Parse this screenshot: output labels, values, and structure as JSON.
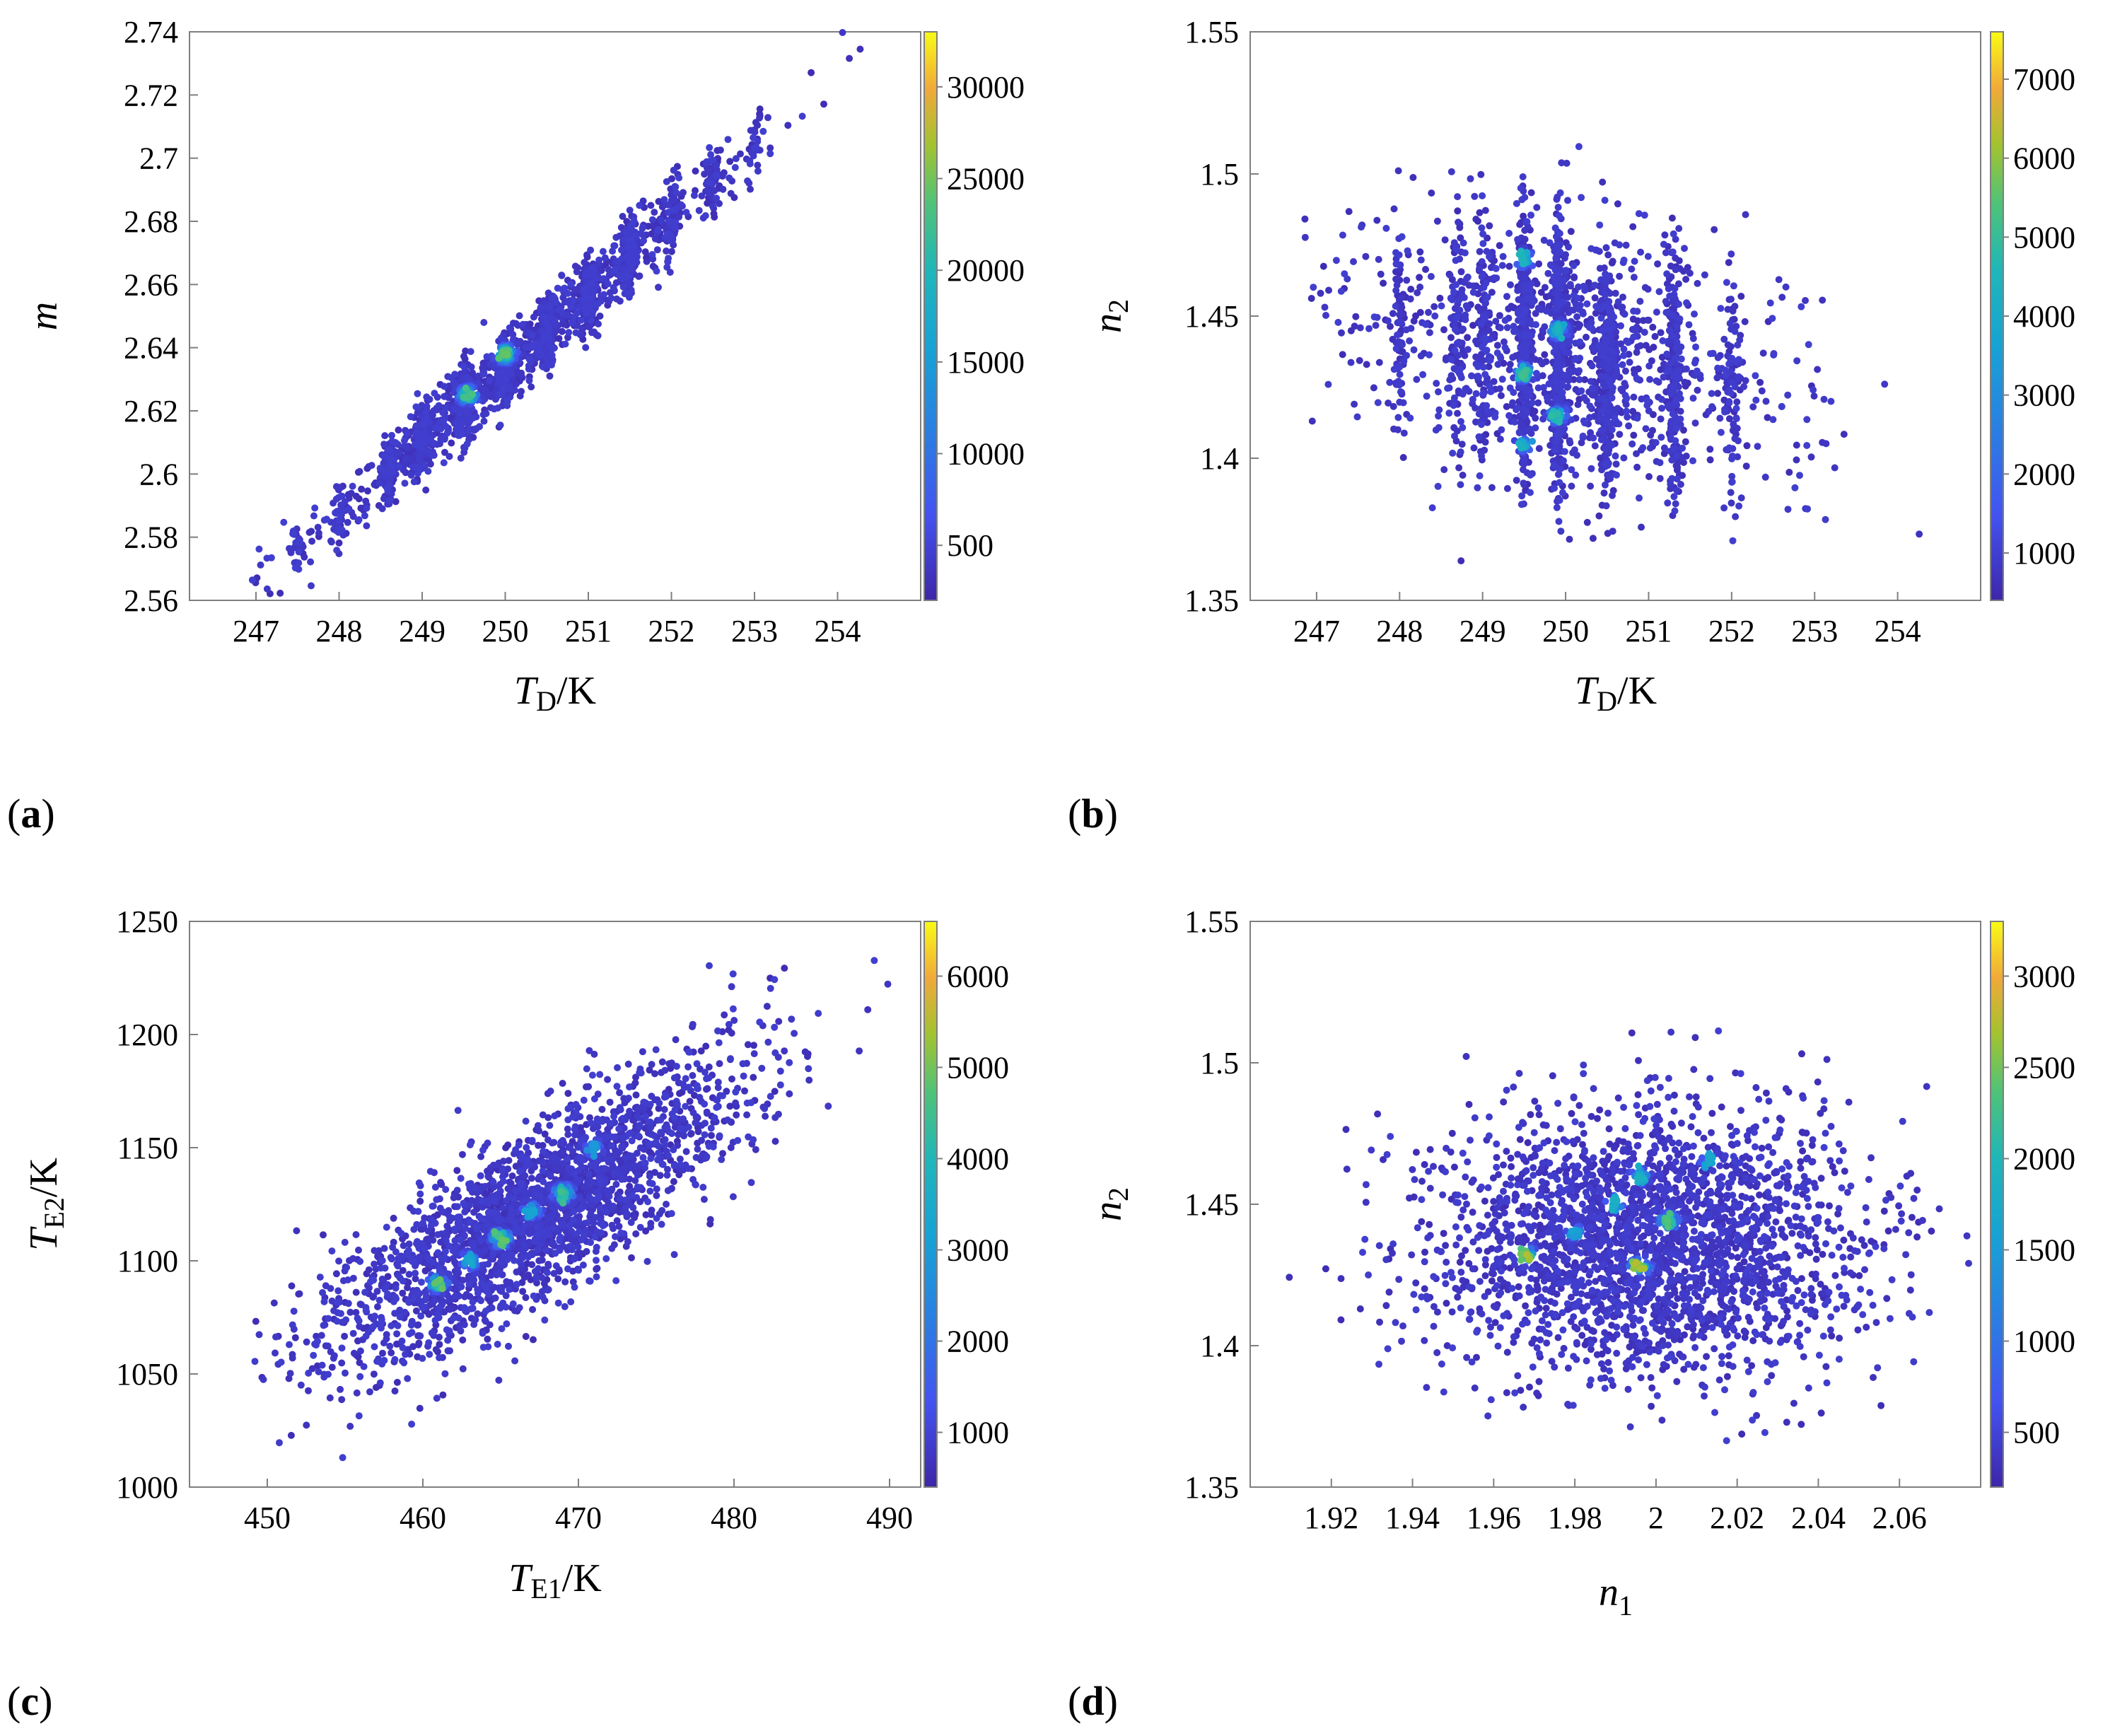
{
  "figure": {
    "panels": [
      {
        "id": "a",
        "label": "a",
        "colorbar": {
          "ticks": [
            "500",
            "10000",
            "15000",
            "20000",
            "25000",
            "30000"
          ]
        }
      },
      {
        "id": "b",
        "label": "b",
        "colorbar": {
          "ticks": [
            "1000",
            "2000",
            "3000",
            "4000",
            "5000",
            "6000",
            "7000"
          ]
        }
      },
      {
        "id": "c",
        "label": "c",
        "colorbar": {
          "ticks": [
            "1000",
            "2000",
            "3000",
            "4000",
            "5000",
            "6000"
          ]
        }
      },
      {
        "id": "d",
        "label": "d",
        "colorbar": {
          "ticks": [
            "500",
            "1000",
            "1500",
            "2000",
            "2500",
            "3000"
          ]
        }
      }
    ]
  },
  "colors": {
    "low": "#3e26a8",
    "mid_low": "#2a7fe2",
    "mid": "#1fb6b9",
    "mid_high": "#8fc53a",
    "high_orange": "#f1a93a",
    "max": "#f9fb15",
    "frame": "#7f7f7f"
  },
  "chart_data": [
    {
      "id": "a",
      "type": "scatter",
      "title": "",
      "xlabel_main": "T",
      "xlabel_sub": "D",
      "xlabel_unit": "/K",
      "ylabel_main": "m",
      "ylabel_sub": "",
      "x_ticks": [
        "247",
        "248",
        "249",
        "250",
        "251",
        "252",
        "253",
        "254"
      ],
      "y_ticks": [
        "2.56",
        "2.58",
        "2.6",
        "2.62",
        "2.64",
        "2.66",
        "2.68",
        "2.7",
        "2.72",
        "2.74"
      ],
      "xlim": [
        246.2,
        255.0
      ],
      "ylim": [
        2.56,
        2.74
      ],
      "seed": 11,
      "n_points": 2400,
      "distribution": {
        "kind": "linear_band",
        "x_center": 250.2,
        "x_sd": 1.2,
        "x_min": 246.8,
        "x_max": 254.7,
        "slope": 0.02333,
        "intercept_x": 250.0,
        "intercept_y": 2.634,
        "y_sd": 0.0055,
        "x_stripes": [
          247.5,
          248.0,
          248.6,
          249.0,
          249.5,
          250.0,
          250.5,
          251.0,
          251.5,
          252.0,
          252.5,
          253.0,
          254.3
        ]
      },
      "hotspots": [
        {
          "x": 249.55,
          "y": 2.625,
          "level": 0.55
        },
        {
          "x": 250.0,
          "y": 2.638,
          "level": 0.62
        }
      ]
    },
    {
      "id": "b",
      "type": "scatter",
      "title": "",
      "xlabel_main": "T",
      "xlabel_sub": "D",
      "xlabel_unit": "/K",
      "ylabel_main": "n",
      "ylabel_sub": "2",
      "x_ticks": [
        "247",
        "248",
        "249",
        "250",
        "251",
        "252",
        "253",
        "254"
      ],
      "y_ticks": [
        "1.35",
        "1.4",
        "1.45",
        "1.5",
        "1.55"
      ],
      "xlim": [
        246.2,
        255.0
      ],
      "ylim": [
        1.35,
        1.55
      ],
      "seed": 23,
      "n_points": 2600,
      "distribution": {
        "kind": "cloud",
        "x_center": 250.0,
        "x_sd": 1.2,
        "x_min": 246.8,
        "x_max": 254.7,
        "y_center": 1.436,
        "y_sd": 0.022,
        "y_slope": -0.005,
        "x_stripes": [
          248.0,
          248.7,
          249.0,
          249.5,
          249.9,
          250.0,
          250.5,
          251.3,
          252.0,
          254.3
        ],
        "dense_stripes": [
          249.5,
          249.9
        ]
      },
      "hotspots": [
        {
          "x": 249.5,
          "y": 1.47,
          "level": 0.45
        },
        {
          "x": 249.5,
          "y": 1.43,
          "level": 0.55
        },
        {
          "x": 249.9,
          "y": 1.445,
          "level": 0.45
        },
        {
          "x": 249.9,
          "y": 1.415,
          "level": 0.5
        },
        {
          "x": 249.5,
          "y": 1.405,
          "level": 0.42
        }
      ]
    },
    {
      "id": "c",
      "type": "scatter",
      "title": "",
      "xlabel_main": "T",
      "xlabel_sub": "E1",
      "xlabel_unit": "/K",
      "ylabel_main": "T",
      "ylabel_sub": "E2",
      "ylabel_unit": "/K",
      "x_ticks": [
        "450",
        "460",
        "470",
        "480",
        "490"
      ],
      "y_ticks": [
        "1000",
        "1050",
        "1100",
        "1150",
        "1200",
        "1250"
      ],
      "xlim": [
        445.0,
        492.0
      ],
      "ylim": [
        1000,
        1250
      ],
      "seed": 37,
      "n_points": 2500,
      "distribution": {
        "kind": "ellipse",
        "x_center": 467.0,
        "x_sd": 6.5,
        "x_min": 449.0,
        "x_max": 490.0,
        "slope": 4.1,
        "intercept_x": 467.0,
        "intercept_y": 1120.0,
        "y_sd": 19.0
      },
      "hotspots": [
        {
          "x": 461.0,
          "y": 1090.0,
          "level": 0.6
        },
        {
          "x": 465.0,
          "y": 1110.0,
          "level": 0.6
        },
        {
          "x": 469.0,
          "y": 1130.0,
          "level": 0.58
        },
        {
          "x": 463.0,
          "y": 1100.0,
          "level": 0.38
        },
        {
          "x": 467.0,
          "y": 1122.0,
          "level": 0.38
        },
        {
          "x": 471.0,
          "y": 1150.0,
          "level": 0.32
        }
      ]
    },
    {
      "id": "d",
      "type": "scatter",
      "title": "",
      "xlabel_main": "n",
      "xlabel_sub": "1",
      "xlabel_unit": "",
      "ylabel_main": "n",
      "ylabel_sub": "2",
      "x_ticks": [
        "1.92",
        "1.94",
        "1.96",
        "1.98",
        "2",
        "2.02",
        "2.04",
        "2.06"
      ],
      "y_ticks": [
        "1.35",
        "1.4",
        "1.45",
        "1.5",
        "1.55"
      ],
      "xlim": [
        1.9,
        2.08
      ],
      "ylim": [
        1.35,
        1.55
      ],
      "seed": 53,
      "n_points": 2600,
      "distribution": {
        "kind": "cloud",
        "x_center": 1.998,
        "x_sd": 0.026,
        "x_min": 1.905,
        "x_max": 2.078,
        "y_center": 1.436,
        "y_sd": 0.024,
        "y_slope": 0.0
      },
      "hotspots": [
        {
          "x": 1.968,
          "y": 1.432,
          "level": 0.72
        },
        {
          "x": 1.996,
          "y": 1.428,
          "level": 0.72
        },
        {
          "x": 2.003,
          "y": 1.444,
          "level": 0.6
        },
        {
          "x": 1.996,
          "y": 1.46,
          "level": 0.45
        },
        {
          "x": 1.99,
          "y": 1.45,
          "level": 0.42
        },
        {
          "x": 2.013,
          "y": 1.466,
          "level": 0.38
        },
        {
          "x": 1.98,
          "y": 1.44,
          "level": 0.35
        }
      ]
    }
  ]
}
